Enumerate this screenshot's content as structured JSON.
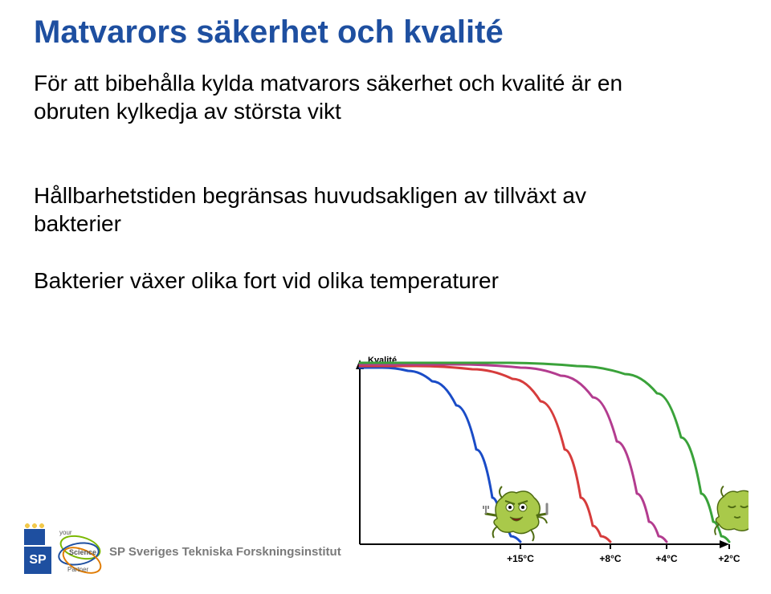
{
  "title": "Matvarors säkerhet och kvalité",
  "paragraphs": {
    "p1": "För att bibehålla kylda matvarors säkerhet och kvalité är en obruten kylkedja av största vikt",
    "p2": "Hållbarhetstiden begränsas huvudsakligen av tillväxt av bakterier",
    "p3": "Bakterier växer olika fort vid olika temperaturer"
  },
  "footer": {
    "sp_box": "SP",
    "sp_text": "SP Sveriges Tekniska Forskningsinstitut",
    "partner_top": "your",
    "partner_mid": "Science",
    "partner_bot": "Partner"
  },
  "chart": {
    "y_axis_label": "Kvalité",
    "x_ticks": [
      "+15°C",
      "+8°C",
      "+4°C",
      "+2°C"
    ],
    "plot_bg": "#ffffff",
    "axis_color": "#000000",
    "series": [
      {
        "name": "15C",
        "color": "#1a4cc7",
        "stroke_width": 3,
        "points": [
          [
            0,
            8
          ],
          [
            28,
            8
          ],
          [
            60,
            12
          ],
          [
            90,
            25
          ],
          [
            120,
            55
          ],
          [
            145,
            110
          ],
          [
            165,
            170
          ],
          [
            178,
            205
          ],
          [
            188,
            218
          ],
          [
            200,
            225
          ]
        ]
      },
      {
        "name": "8C",
        "color": "#d63c3c",
        "stroke_width": 3,
        "points": [
          [
            0,
            6
          ],
          [
            70,
            6
          ],
          [
            140,
            10
          ],
          [
            190,
            22
          ],
          [
            225,
            50
          ],
          [
            255,
            110
          ],
          [
            275,
            170
          ],
          [
            290,
            205
          ],
          [
            300,
            218
          ],
          [
            312,
            225
          ]
        ]
      },
      {
        "name": "4C",
        "color": "#b33c8f",
        "stroke_width": 3,
        "points": [
          [
            0,
            4
          ],
          [
            120,
            4
          ],
          [
            200,
            8
          ],
          [
            250,
            18
          ],
          [
            290,
            45
          ],
          [
            320,
            100
          ],
          [
            345,
            165
          ],
          [
            360,
            200
          ],
          [
            372,
            218
          ],
          [
            382,
            225
          ]
        ]
      },
      {
        "name": "2C",
        "color": "#3aa23a",
        "stroke_width": 3,
        "points": [
          [
            0,
            2
          ],
          [
            180,
            2
          ],
          [
            270,
            6
          ],
          [
            330,
            16
          ],
          [
            370,
            40
          ],
          [
            400,
            95
          ],
          [
            425,
            165
          ],
          [
            440,
            200
          ],
          [
            450,
            218
          ],
          [
            460,
            225
          ]
        ]
      }
    ],
    "bacteria_colors": {
      "body": "#a9c94a",
      "body_dark": "#8aad2f",
      "outline": "#4f6b12",
      "mouth": "#7a1818",
      "eye": "#ffffff",
      "pupil": "#000000"
    }
  },
  "colors": {
    "title": "#1e4fa0",
    "body": "#000000",
    "background": "#ffffff"
  }
}
